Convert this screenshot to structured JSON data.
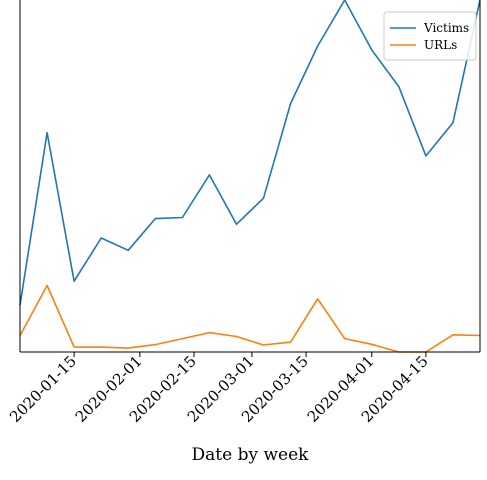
{
  "chart_data": {
    "type": "line",
    "x": [
      "2020-01-01",
      "2020-01-08",
      "2020-01-15",
      "2020-01-22",
      "2020-01-29",
      "2020-02-05",
      "2020-02-12",
      "2020-02-19",
      "2020-02-26",
      "2020-03-04",
      "2020-03-11",
      "2020-03-18",
      "2020-03-25",
      "2020-04-01",
      "2020-04-08",
      "2020-04-15",
      "2020-04-22",
      "2020-04-29"
    ],
    "series": [
      {
        "name": "Victims",
        "color": "#1f77b4",
        "values": [
          0.133,
          0.623,
          0.201,
          0.324,
          0.289,
          0.379,
          0.382,
          0.503,
          0.363,
          0.437,
          0.706,
          0.869,
          1.0,
          0.858,
          0.754,
          0.557,
          0.651,
          1.0
        ]
      },
      {
        "name": "URLs",
        "color": "#ff7f0e",
        "values": [
          0.047,
          0.189,
          0.014,
          0.014,
          0.011,
          0.021,
          0.038,
          0.055,
          0.044,
          0.02,
          0.028,
          0.151,
          0.038,
          0.022,
          0.0,
          0.0,
          0.049,
          0.047
        ]
      }
    ],
    "xticks": [
      "2020-01-15",
      "2020-02-01",
      "2020-02-15",
      "2020-03-01",
      "2020-03-15",
      "2020-04-01",
      "2020-04-15"
    ],
    "xlabel": "Date by week",
    "ylabel": "",
    "grid": false,
    "legend": "top-right"
  },
  "colors": {
    "victims": "#1f77b4",
    "urls": "#ff7f0e",
    "axis": "#000000"
  }
}
